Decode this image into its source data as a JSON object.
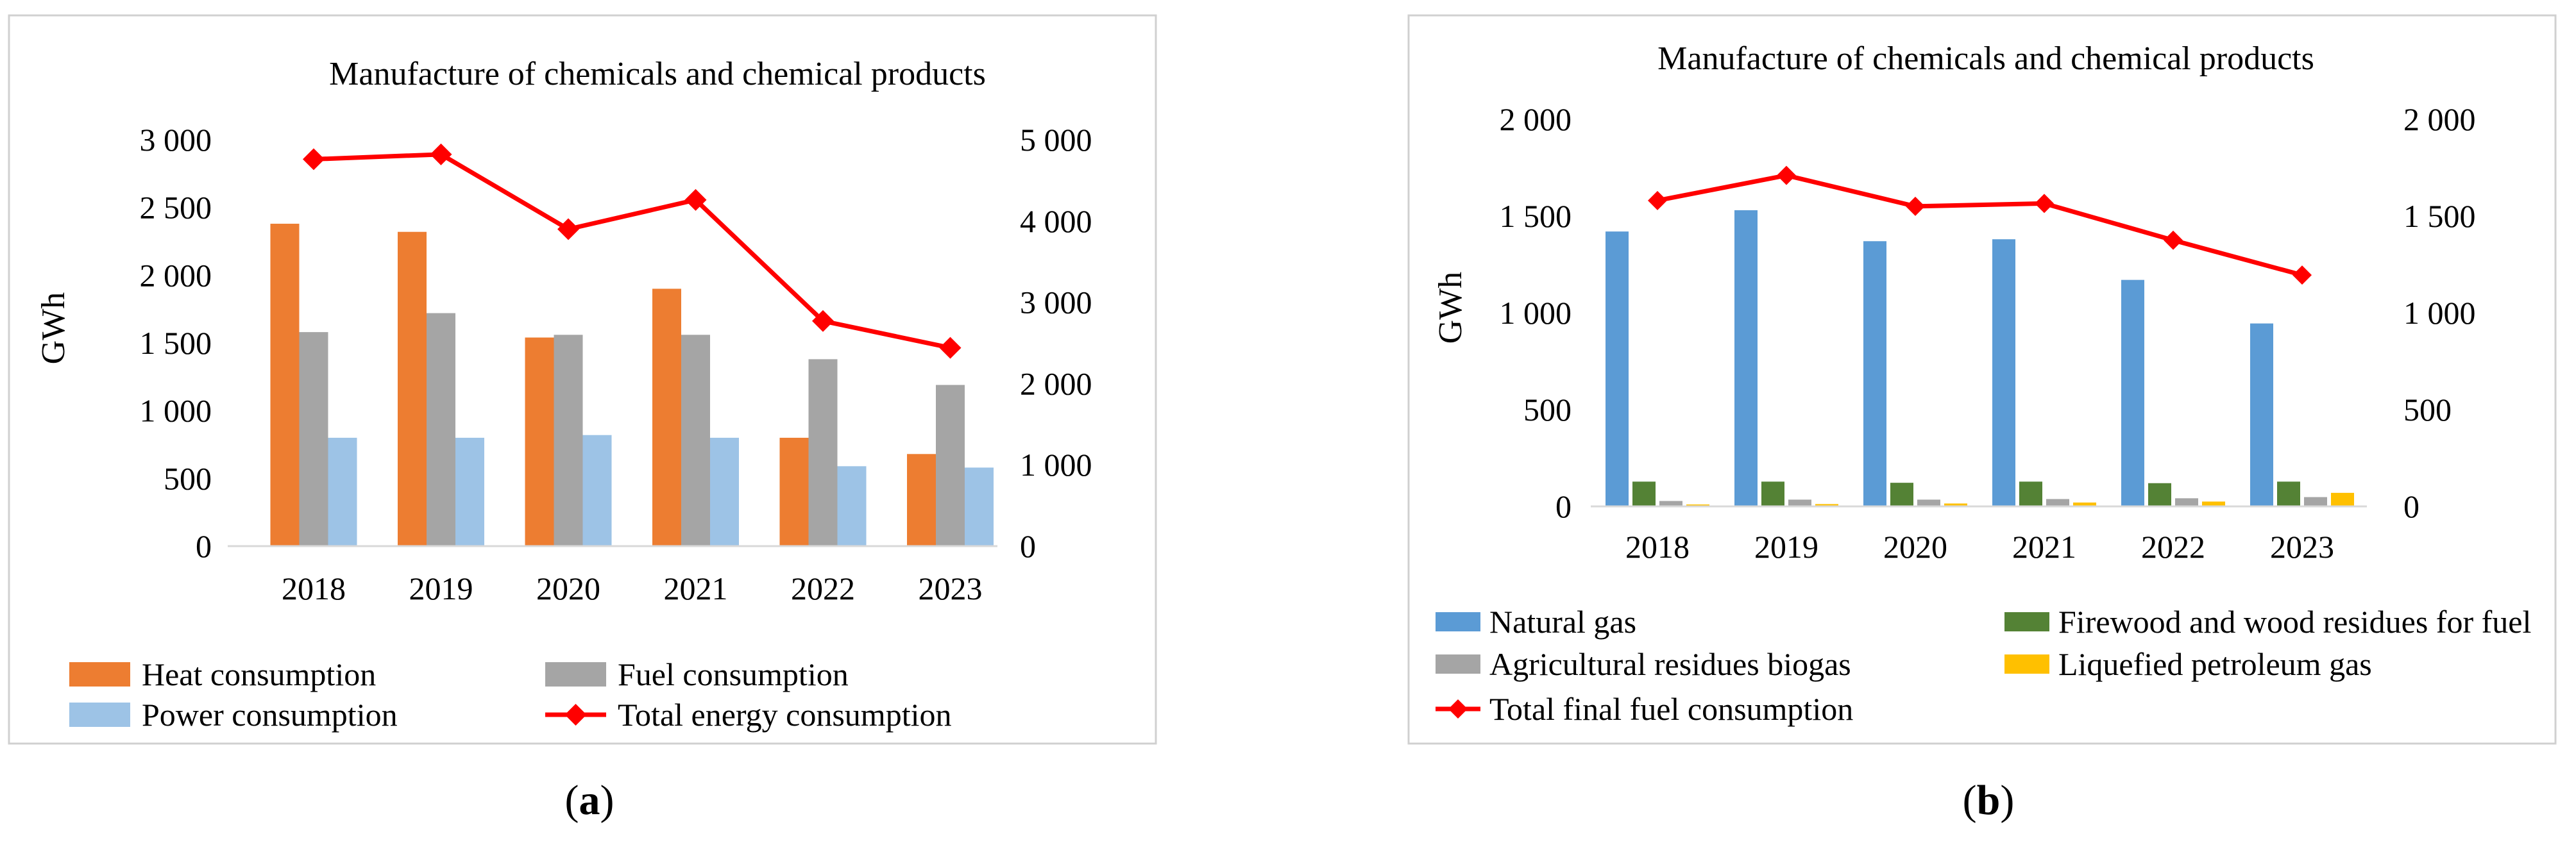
{
  "chart_data": [
    {
      "type": "bar+line",
      "panel_label": "a",
      "title": "Manufacture of chemicals and chemical products",
      "ylabel": "GWh",
      "categories": [
        "2018",
        "2019",
        "2020",
        "2021",
        "2022",
        "2023"
      ],
      "ylim": [
        0,
        3000
      ],
      "yticks": [
        0,
        500,
        1000,
        1500,
        2000,
        2500,
        3000
      ],
      "ytick_labels": [
        "0",
        "500",
        "1 000",
        "1 500",
        "2 000",
        "2 500",
        "3 000"
      ],
      "y2lim": [
        0,
        5000
      ],
      "y2ticks": [
        0,
        1000,
        2000,
        3000,
        4000,
        5000
      ],
      "y2tick_labels": [
        "0",
        "1 000",
        "2 000",
        "3 000",
        "4 000",
        "5 000"
      ],
      "bar_series": [
        {
          "name": "Heat consumption",
          "color": "#ED7D31",
          "values": [
            2380,
            2320,
            1540,
            1900,
            800,
            680
          ]
        },
        {
          "name": "Fuel consumption",
          "color": "#A5A5A5",
          "values": [
            1580,
            1720,
            1560,
            1560,
            1380,
            1190
          ]
        },
        {
          "name": "Power consumption",
          "color": "#9DC3E6",
          "values": [
            800,
            800,
            820,
            800,
            590,
            580
          ]
        }
      ],
      "line_series": [
        {
          "name": "Total energy consumption",
          "color": "#FF0000",
          "axis": "secondary",
          "values": [
            4760,
            4820,
            3900,
            4260,
            2770,
            2440
          ]
        }
      ],
      "legend": [
        "Heat consumption",
        "Fuel consumption",
        "Power consumption",
        "Total energy consumption"
      ]
    },
    {
      "type": "bar+line",
      "panel_label": "b",
      "title": "Manufacture of chemicals and chemical products",
      "ylabel": "GWh",
      "categories": [
        "2018",
        "2019",
        "2020",
        "2021",
        "2022",
        "2023"
      ],
      "ylim": [
        0,
        2000
      ],
      "yticks": [
        0,
        500,
        1000,
        1500,
        2000
      ],
      "ytick_labels": [
        "0",
        "500",
        "1 000",
        "1 500",
        "2 000"
      ],
      "y2lim": [
        0,
        2000
      ],
      "y2ticks": [
        0,
        500,
        1000,
        1500,
        2000
      ],
      "y2tick_labels": [
        "0",
        "500",
        "1 000",
        "1 500",
        "2 000"
      ],
      "bar_series": [
        {
          "name": "Natural gas",
          "color": "#5B9BD5",
          "values": [
            1420,
            1530,
            1370,
            1380,
            1170,
            945
          ]
        },
        {
          "name": "Firewood and wood residues for fuel",
          "color": "#548235",
          "values": [
            128,
            128,
            122,
            128,
            120,
            128
          ]
        },
        {
          "name": "Agricultural residues biogas",
          "color": "#A5A5A5",
          "values": [
            28,
            35,
            35,
            38,
            42,
            48
          ]
        },
        {
          "name": "Liquefied petroleum gas",
          "color": "#FFC000",
          "values": [
            10,
            12,
            15,
            20,
            25,
            70
          ]
        }
      ],
      "line_series": [
        {
          "name": "Total final fuel consumption",
          "color": "#FF0000",
          "axis": "secondary",
          "values": [
            1580,
            1710,
            1550,
            1565,
            1375,
            1195
          ]
        }
      ],
      "legend": [
        "Natural gas",
        "Firewood and wood residues for fuel",
        "Agricultural residues biogas",
        "Liquefied petroleum gas",
        "Total final fuel consumption"
      ]
    }
  ]
}
